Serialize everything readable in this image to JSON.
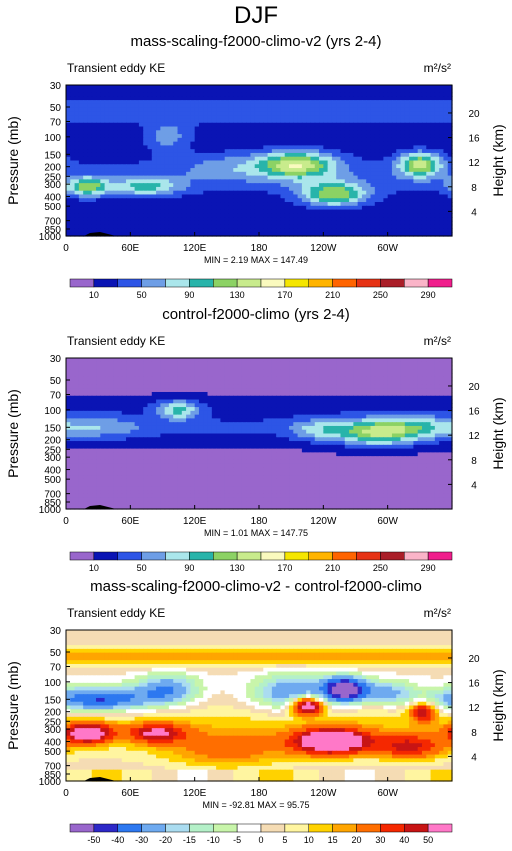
{
  "page": {
    "title": "DJF"
  },
  "chart_data": [
    {
      "type": "heatmap",
      "title": "mass-scaling-f2000-climo-v2 (yrs 2-4)",
      "left_label": "Transient eddy KE",
      "units_label": "m²/s²",
      "ylabel": "Pressure (mb)",
      "ylabel_right": "Height (km)",
      "x_ticks": [
        "0",
        "60E",
        "120E",
        "180",
        "120W",
        "60W"
      ],
      "y_ticks": [
        "30",
        "50",
        "70",
        "100",
        "150",
        "200",
        "250",
        "300",
        "400",
        "500",
        "700",
        "850",
        "1000"
      ],
      "y_ticks_right": [
        "20",
        "16",
        "12",
        "8",
        "4"
      ],
      "stats": "MIN =   2.19  MAX = 147.49",
      "colorbar": {
        "labels": [
          "10",
          "50",
          "90",
          "130",
          "170",
          "210",
          "250",
          "290"
        ],
        "colors": [
          "#9966cc",
          "#0a14b4",
          "#2d55e6",
          "#6e9ee6",
          "#aae6eb",
          "#28b4aa",
          "#8cd264",
          "#c8eb8c",
          "#fafabe",
          "#f5e600",
          "#ffb400",
          "#ff6400",
          "#e63214",
          "#aa1e28",
          "#fab4c8",
          "#f01e8c"
        ]
      },
      "field_type": "control_plus"
    },
    {
      "type": "heatmap",
      "title": "control-f2000-climo (yrs 2-4)",
      "left_label": "Transient eddy KE",
      "units_label": "m²/s²",
      "ylabel": "Pressure (mb)",
      "ylabel_right": "Height (km)",
      "x_ticks": [
        "0",
        "60E",
        "120E",
        "180",
        "120W",
        "60W"
      ],
      "y_ticks": [
        "30",
        "50",
        "70",
        "100",
        "150",
        "200",
        "250",
        "300",
        "400",
        "500",
        "700",
        "850",
        "1000"
      ],
      "y_ticks_right": [
        "20",
        "16",
        "12",
        "8",
        "4"
      ],
      "stats": "MIN =   1.01  MAX = 147.75",
      "colorbar": {
        "labels": [
          "10",
          "50",
          "90",
          "130",
          "170",
          "210",
          "250",
          "290"
        ],
        "colors": [
          "#9966cc",
          "#0a14b4",
          "#2d55e6",
          "#6e9ee6",
          "#aae6eb",
          "#28b4aa",
          "#8cd264",
          "#c8eb8c",
          "#fafabe",
          "#f5e600",
          "#ffb400",
          "#ff6400",
          "#e63214",
          "#aa1e28",
          "#fab4c8",
          "#f01e8c"
        ]
      },
      "field_type": "control"
    },
    {
      "type": "heatmap",
      "title": "mass-scaling-f2000-climo-v2 - control-f2000-climo",
      "left_label": "Transient eddy KE",
      "units_label": "m²/s²",
      "ylabel": "Pressure (mb)",
      "ylabel_right": "Height (km)",
      "x_ticks": [
        "0",
        "60E",
        "120E",
        "180",
        "120W",
        "60W"
      ],
      "y_ticks": [
        "30",
        "50",
        "70",
        "100",
        "150",
        "200",
        "250",
        "300",
        "400",
        "500",
        "700",
        "850",
        "1000"
      ],
      "y_ticks_right": [
        "20",
        "16",
        "12",
        "8",
        "4"
      ],
      "stats": "MIN = -92.81  MAX =  95.75",
      "colorbar": {
        "labels": [
          "-50",
          "-40",
          "-30",
          "-20",
          "-15",
          "-10",
          "-5",
          "0",
          "5",
          "10",
          "15",
          "20",
          "30",
          "40",
          "50"
        ],
        "colors": [
          "#9966cc",
          "#2d28c8",
          "#2d78f0",
          "#6eaaf0",
          "#aadcf0",
          "#b4f0c8",
          "#c8f5aa",
          "#ffffff",
          "#f5dcb4",
          "#fff5a0",
          "#ffd200",
          "#ffa500",
          "#ff6e00",
          "#f52800",
          "#c81414",
          "#ff78c8"
        ]
      },
      "field_type": "diff"
    }
  ]
}
